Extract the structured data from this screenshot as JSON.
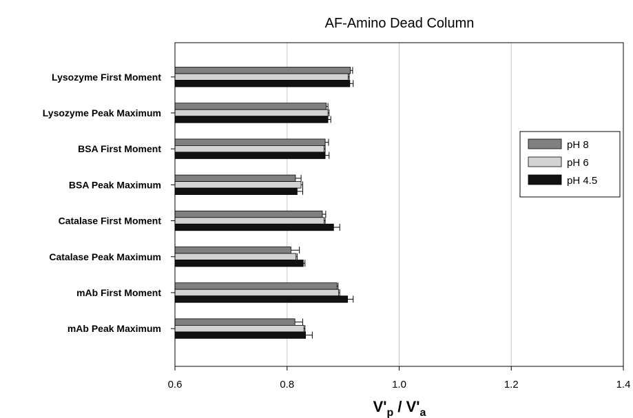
{
  "chart_data": {
    "type": "bar",
    "orientation": "horizontal",
    "title": "AF-Amino Dead Column",
    "xlabel": "V'p / V'a",
    "xlabel_main": "V'",
    "xlabel_sub1": "p",
    "xlabel_mid": " / V'",
    "xlabel_sub2": "a",
    "xlim": [
      0.6,
      1.4
    ],
    "xticks": [
      "0.6",
      "0.8",
      "1.0",
      "1.2",
      "1.4"
    ],
    "xtick_values": [
      0.6,
      0.8,
      1.0,
      1.2,
      1.4
    ],
    "grid": "vertical",
    "legend_position": "right",
    "categories": [
      "Lysozyme First Moment",
      "Lysozyme Peak Maximum",
      "BSA First Moment",
      "BSA Peak Maximum",
      "Catalase First Moment",
      "Catalase Peak Maximum",
      "mAb First Moment",
      "mAb Peak Maximum"
    ],
    "series": [
      {
        "name": "pH 8",
        "color": "#808080",
        "values": [
          0.913,
          0.87,
          0.868,
          0.815,
          0.863,
          0.807,
          0.889,
          0.814
        ],
        "errors": [
          0.004,
          0.003,
          0.006,
          0.01,
          0.006,
          0.015,
          0.002,
          0.014
        ]
      },
      {
        "name": "pH 6",
        "color": "#d3d3d3",
        "values": [
          0.909,
          0.873,
          0.866,
          0.825,
          0.866,
          0.816,
          0.892,
          0.83
        ],
        "errors": [
          0.002,
          0.002,
          0.002,
          0.003,
          0.002,
          0.002,
          0.002,
          0.002
        ]
      },
      {
        "name": "pH 4.5",
        "color": "#111111",
        "values": [
          0.912,
          0.873,
          0.868,
          0.818,
          0.883,
          0.829,
          0.908,
          0.833
        ],
        "errors": [
          0.006,
          0.005,
          0.007,
          0.01,
          0.011,
          0.003,
          0.01,
          0.012
        ]
      }
    ]
  }
}
